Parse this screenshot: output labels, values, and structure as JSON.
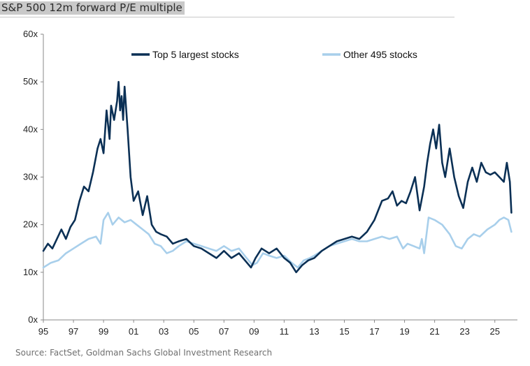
{
  "chart_data": {
    "type": "line",
    "title": "S&P 500 12m forward P/E multiple",
    "source": "Source: FactSet, Goldman Sachs Global Investment Research",
    "xlabel": "",
    "ylabel": "",
    "xlim": [
      1995,
      2026.5
    ],
    "ylim": [
      0,
      60
    ],
    "y_ticks": [
      0,
      10,
      20,
      30,
      40,
      50,
      60
    ],
    "y_tick_labels": [
      "0x",
      "10x",
      "20x",
      "30x",
      "40x",
      "50x",
      "60x"
    ],
    "x_ticks": [
      1995,
      1997,
      1999,
      2001,
      2003,
      2005,
      2007,
      2009,
      2011,
      2013,
      2015,
      2017,
      2019,
      2021,
      2023,
      2025
    ],
    "x_tick_labels": [
      "95",
      "97",
      "99",
      "01",
      "03",
      "05",
      "07",
      "09",
      "11",
      "13",
      "15",
      "17",
      "19",
      "21",
      "23",
      "25"
    ],
    "grid": false,
    "legend_position": "top",
    "series": [
      {
        "name": "Top 5 largest stocks",
        "color": "#0b3055",
        "x": [
          1995.0,
          1995.3,
          1995.6,
          1995.9,
          1996.2,
          1996.5,
          1996.8,
          1997.1,
          1997.4,
          1997.7,
          1998.0,
          1998.3,
          1998.6,
          1998.8,
          1999.0,
          1999.2,
          1999.4,
          1999.5,
          1999.7,
          1999.9,
          2000.0,
          2000.1,
          2000.2,
          2000.3,
          2000.4,
          2000.6,
          2000.8,
          2001.0,
          2001.3,
          2001.6,
          2001.9,
          2002.2,
          2002.5,
          2002.8,
          2003.2,
          2003.6,
          2004.0,
          2004.5,
          2005.0,
          2005.5,
          2006.0,
          2006.5,
          2007.0,
          2007.5,
          2008.0,
          2008.4,
          2008.8,
          2009.1,
          2009.5,
          2010.0,
          2010.5,
          2011.0,
          2011.4,
          2011.8,
          2012.2,
          2012.6,
          2013.0,
          2013.5,
          2014.0,
          2014.5,
          2015.0,
          2015.5,
          2016.0,
          2016.5,
          2017.0,
          2017.5,
          2017.9,
          2018.2,
          2018.5,
          2018.8,
          2019.1,
          2019.4,
          2019.7,
          2020.0,
          2020.3,
          2020.5,
          2020.7,
          2020.9,
          2021.1,
          2021.3,
          2021.5,
          2021.7,
          2022.0,
          2022.3,
          2022.6,
          2022.9,
          2023.2,
          2023.5,
          2023.8,
          2024.1,
          2024.4,
          2024.7,
          2025.0,
          2025.3,
          2025.6,
          2025.8,
          2026.0,
          2026.1
        ],
        "values": [
          14.5,
          16.0,
          15.0,
          17.0,
          19.0,
          17.0,
          19.5,
          21.0,
          25.0,
          28.0,
          27.0,
          31.0,
          36.0,
          38.0,
          35.0,
          44.0,
          38.0,
          45.0,
          42.0,
          46.0,
          50.0,
          44.0,
          47.0,
          42.0,
          49.0,
          40.0,
          30.0,
          25.0,
          27.0,
          22.0,
          26.0,
          20.0,
          18.5,
          18.0,
          17.5,
          16.0,
          16.5,
          17.0,
          15.5,
          15.0,
          14.0,
          13.0,
          14.5,
          13.0,
          14.0,
          12.5,
          11.0,
          13.0,
          15.0,
          14.0,
          15.0,
          13.0,
          12.0,
          10.0,
          11.5,
          12.5,
          13.0,
          14.5,
          15.5,
          16.5,
          17.0,
          17.5,
          17.0,
          18.5,
          21.0,
          25.0,
          25.5,
          27.0,
          24.0,
          25.0,
          24.5,
          27.0,
          30.0,
          23.0,
          28.0,
          33.0,
          37.0,
          40.0,
          36.0,
          41.0,
          33.0,
          30.0,
          36.0,
          30.0,
          26.0,
          23.5,
          29.0,
          32.0,
          29.0,
          33.0,
          31.0,
          30.5,
          31.0,
          30.0,
          29.0,
          33.0,
          29.0,
          22.5
        ]
      },
      {
        "name": "Other 495 stocks",
        "color": "#a8cfeb",
        "x": [
          1995.0,
          1995.5,
          1996.0,
          1996.5,
          1997.0,
          1997.5,
          1998.0,
          1998.5,
          1998.8,
          1999.0,
          1999.3,
          1999.6,
          2000.0,
          2000.4,
          2000.8,
          2001.2,
          2001.6,
          2002.0,
          2002.4,
          2002.8,
          2003.2,
          2003.6,
          2004.0,
          2004.5,
          2005.0,
          2005.5,
          2006.0,
          2006.5,
          2007.0,
          2007.5,
          2008.0,
          2008.5,
          2008.9,
          2009.2,
          2009.6,
          2010.0,
          2010.5,
          2011.0,
          2011.5,
          2011.9,
          2012.3,
          2012.7,
          2013.0,
          2013.5,
          2014.0,
          2014.5,
          2015.0,
          2015.5,
          2016.0,
          2016.5,
          2017.0,
          2017.5,
          2018.0,
          2018.5,
          2018.9,
          2019.2,
          2019.6,
          2020.0,
          2020.15,
          2020.3,
          2020.6,
          2021.0,
          2021.5,
          2022.0,
          2022.4,
          2022.8,
          2023.2,
          2023.6,
          2024.0,
          2024.5,
          2025.0,
          2025.3,
          2025.6,
          2025.9,
          2026.1
        ],
        "values": [
          11.0,
          12.0,
          12.5,
          14.0,
          15.0,
          16.0,
          17.0,
          17.5,
          16.0,
          21.0,
          22.5,
          20.0,
          21.5,
          20.5,
          21.0,
          20.0,
          19.0,
          18.0,
          16.0,
          15.5,
          14.0,
          14.5,
          15.5,
          16.5,
          16.0,
          15.5,
          15.0,
          14.5,
          15.5,
          14.5,
          15.0,
          13.0,
          11.5,
          12.0,
          14.0,
          13.5,
          13.0,
          13.5,
          12.0,
          11.0,
          12.5,
          13.0,
          13.5,
          14.5,
          15.5,
          16.0,
          16.5,
          17.0,
          16.5,
          16.5,
          17.0,
          17.5,
          17.0,
          17.5,
          15.0,
          16.0,
          15.5,
          15.0,
          17.0,
          14.0,
          21.5,
          21.0,
          20.0,
          18.0,
          15.5,
          15.0,
          17.0,
          18.0,
          17.5,
          19.0,
          20.0,
          21.0,
          21.5,
          21.0,
          18.5
        ]
      }
    ]
  }
}
